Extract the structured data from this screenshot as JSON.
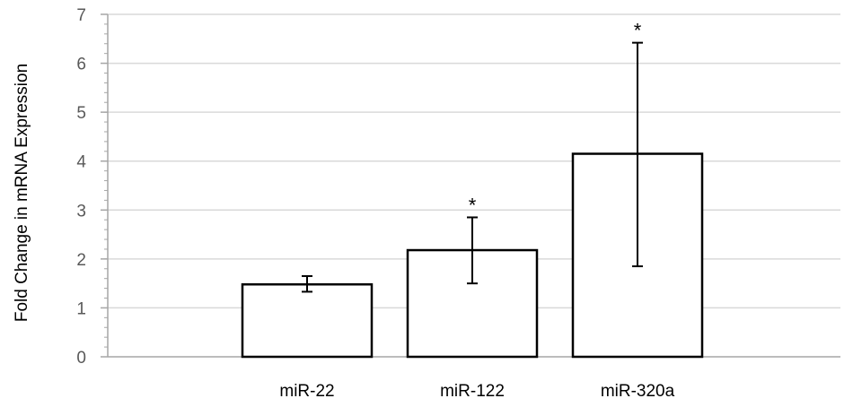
{
  "chart_data": {
    "type": "bar",
    "title": "",
    "xlabel": "",
    "ylabel": "Fold Change in mRNA Expression",
    "ylim": [
      0,
      7
    ],
    "yticks": [
      "0",
      "1",
      "2",
      "3",
      "4",
      "5",
      "6",
      "7"
    ],
    "grid": true,
    "categories": [
      "miR-22",
      "miR-122",
      "miR-320a"
    ],
    "values": [
      1.48,
      2.18,
      4.15
    ],
    "error_low": [
      1.33,
      1.5,
      1.85
    ],
    "error_high": [
      1.65,
      2.85,
      6.42
    ],
    "significance": [
      "",
      "*",
      "*"
    ],
    "colors": {
      "bar_fill": "#ffffff",
      "bar_stroke": "#000000",
      "grid": "#d9d9d9",
      "axis": "#a6a6a6"
    }
  }
}
